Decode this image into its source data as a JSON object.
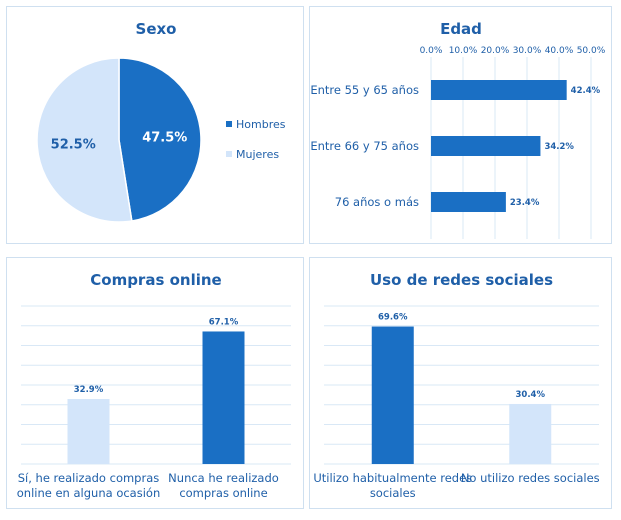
{
  "colors": {
    "dark": "#1a6fc4",
    "light": "#d3e5fa",
    "text": "#1f5fa8",
    "grid": "#d9e8f6"
  },
  "chart_data": [
    {
      "id": "sexo",
      "type": "pie",
      "title": "Sexo",
      "categories": [
        "Hombres",
        "Mujeres"
      ],
      "values": [
        47.5,
        52.5
      ],
      "value_labels": [
        "47.5%",
        "52.5%"
      ],
      "legend": "right"
    },
    {
      "id": "edad",
      "type": "bar",
      "orientation": "horizontal",
      "title": "Edad",
      "categories": [
        "Entre 55 y 65 años",
        "Entre 66 y 75 años",
        "76 años o más"
      ],
      "values": [
        42.4,
        34.2,
        23.4
      ],
      "value_labels": [
        "42.4%",
        "34.2%",
        "23.4%"
      ],
      "xlim": [
        0,
        50
      ],
      "xticks": [
        "0.0%",
        "10.0%",
        "20.0%",
        "30.0%",
        "40.0%",
        "50.0%"
      ],
      "axis_position": "top",
      "grid": true
    },
    {
      "id": "compras",
      "type": "bar",
      "title": "Compras online",
      "categories": [
        [
          "Sí, he realizado compras",
          "online en alguna ocasión"
        ],
        [
          "Nunca he realizado",
          "compras online"
        ]
      ],
      "values": [
        32.9,
        67.1
      ],
      "value_labels": [
        "32.9%",
        "67.1%"
      ],
      "ylim": [
        0,
        80
      ],
      "grid": true
    },
    {
      "id": "redes",
      "type": "bar",
      "title": "Uso de redes sociales",
      "categories": [
        [
          "Utilizo habitualmente redes",
          "sociales"
        ],
        [
          "No utilizo redes sociales"
        ]
      ],
      "values": [
        69.6,
        30.4
      ],
      "value_labels": [
        "69.6%",
        "30.4%"
      ],
      "ylim": [
        0,
        80
      ],
      "grid": true
    }
  ]
}
